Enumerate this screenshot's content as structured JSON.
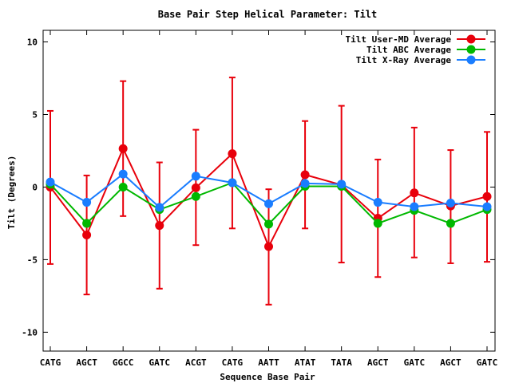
{
  "chart_data": {
    "type": "line",
    "title": "Base Pair Step Helical Parameter: Tilt",
    "xlabel": "Sequence Base Pair",
    "ylabel": "Tilt (Degrees)",
    "categories": [
      "CATG",
      "AGCT",
      "GGCC",
      "GATC",
      "ACGT",
      "CATG",
      "AATT",
      "ATAT",
      "TATA",
      "AGCT",
      "GATC",
      "AGCT",
      "GATC"
    ],
    "ylim": [
      -11.3,
      10.8
    ],
    "yticks": [
      -10,
      -5,
      0,
      5,
      10
    ],
    "ytick_labels": [
      "-10",
      "-5",
      "0",
      "5",
      "10"
    ],
    "legend_position": "top-right",
    "grid": false,
    "series": [
      {
        "name": "Tilt User-MD Average",
        "color": "#e8000b",
        "values": [
          0.0,
          -3.3,
          2.65,
          -2.65,
          -0.05,
          2.3,
          -4.1,
          0.85,
          0.15,
          -2.15,
          -0.4,
          -1.3,
          -0.65
        ],
        "error_low": [
          -5.3,
          -7.4,
          -2.0,
          -7.0,
          -4.0,
          -2.85,
          -8.1,
          -2.85,
          -5.2,
          -6.2,
          -4.85,
          -5.25,
          -5.15
        ],
        "error_high": [
          5.25,
          0.8,
          7.3,
          1.7,
          3.95,
          7.55,
          -0.15,
          4.55,
          5.6,
          1.9,
          4.1,
          2.55,
          3.8
        ]
      },
      {
        "name": "Tilt ABC Average",
        "color": "#00b800",
        "values": [
          0.2,
          -2.5,
          0.0,
          -1.55,
          -0.65,
          0.3,
          -2.55,
          0.05,
          0.05,
          -2.5,
          -1.6,
          -2.5,
          -1.55
        ]
      },
      {
        "name": "Tilt X-Ray Average",
        "color": "#1a7dff",
        "values": [
          0.35,
          -1.05,
          0.9,
          -1.4,
          0.75,
          0.3,
          -1.15,
          0.25,
          0.2,
          -1.05,
          -1.35,
          -1.1,
          -1.35
        ]
      }
    ]
  }
}
